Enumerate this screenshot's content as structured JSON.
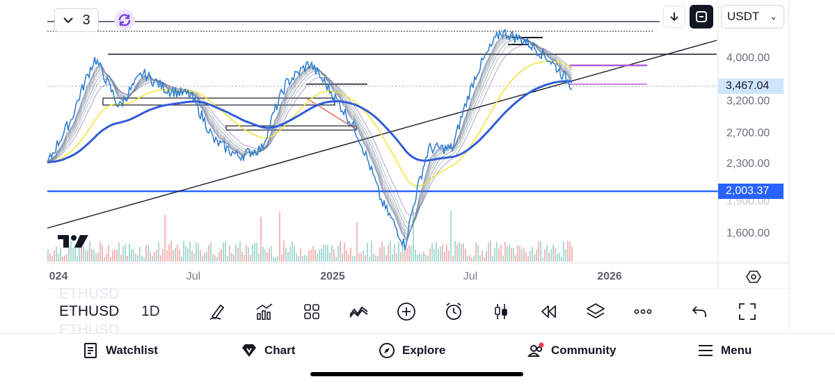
{
  "indicator_pill": {
    "count": "3",
    "icon": "chevron-down-icon"
  },
  "sync_icon": "sync-icon",
  "header": {
    "download_icon": "arrow-down-icon",
    "fullscreen_icon": "fullscreen-icon",
    "currency": "USDT"
  },
  "price_scale": {
    "ticks": [
      "4,000.00",
      "3,200.00",
      "2,700.00",
      "2,300.00",
      "1,900.00",
      "1,600.00"
    ],
    "last_price": "3,467.04",
    "line_price": "2,003.37"
  },
  "time_axis": {
    "labels": [
      "024",
      "Jul",
      "2025",
      "Jul",
      "2026"
    ]
  },
  "toolbar": {
    "symbol": "ETHUSD",
    "interval": "1D",
    "tools": [
      "pen-icon",
      "chart-type-icon",
      "grid-icon",
      "indicators-icon",
      "add-icon",
      "alarm-icon",
      "candles-icon",
      "replay-icon",
      "layers-icon",
      "more-icon",
      "undo-icon",
      "fullscreen-icon"
    ]
  },
  "nav": {
    "watchlist": "Watchlist",
    "chart": "Chart",
    "explore": "Explore",
    "community": "Community",
    "menu": "Menu"
  },
  "colors": {
    "price_line": "#2f7fd0",
    "ema_long": "#2f5bd8",
    "ema_mid": "#f0e43a",
    "ribbon_up": "#52b35d",
    "ribbon_down": "#7b3fbf",
    "accent": "#2962ff",
    "level_purple": "#b05be0"
  },
  "chart_data": {
    "type": "line",
    "series": [
      {
        "x": [
          "2024-01",
          "2024-02",
          "2024-03",
          "2024-04",
          "2024-05",
          "2024-06",
          "2024-07",
          "2024-08",
          "2024-09",
          "2024-10",
          "2024-11",
          "2024-12",
          "2025-01",
          "2025-02",
          "2025-03",
          "2025-04",
          "2025-05",
          "2025-06",
          "2025-07",
          "2025-08",
          "2025-09",
          "2025-10",
          "2025-11"
        ],
        "values": [
          2300,
          2900,
          4000,
          3100,
          3700,
          3400,
          3300,
          2600,
          2400,
          2500,
          3500,
          3900,
          3300,
          2700,
          1900,
          1500,
          2500,
          2500,
          3700,
          4600,
          4400,
          4000,
          3467
        ]
      }
    ]
  }
}
